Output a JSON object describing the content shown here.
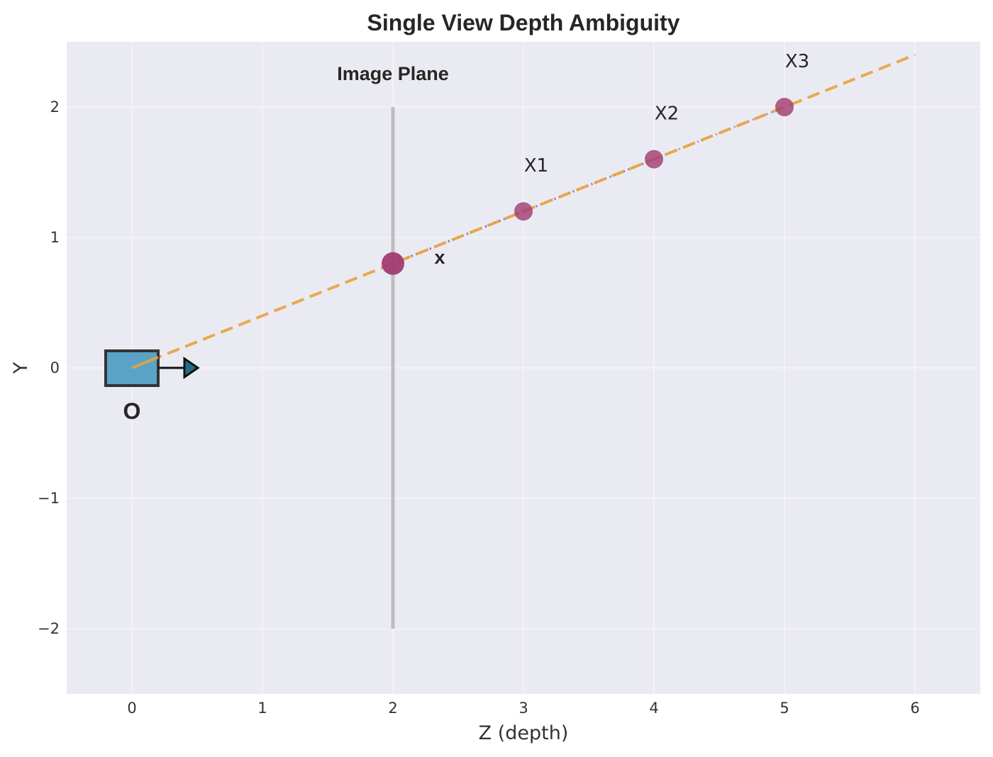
{
  "chart_data": {
    "type": "scatter",
    "title": "Single View Depth Ambiguity",
    "xlabel": "Z (depth)",
    "ylabel": "Y",
    "xlim": [
      -0.5,
      6.5
    ],
    "ylim": [
      -2.5,
      2.5
    ],
    "xticks": [
      0,
      1,
      2,
      3,
      4,
      5,
      6
    ],
    "yticks": [
      -2,
      -1,
      0,
      1,
      2
    ],
    "ytick_labels": [
      "−2",
      "−1",
      "0",
      "1",
      "2"
    ],
    "grid": true,
    "colors": {
      "background": "#eaeaf2",
      "grid": "#f4f4f8",
      "ray": "#e8a33d",
      "point": "#a23b72",
      "camera": "#5ba3c6",
      "plane": "#bdbdbd"
    },
    "image_plane": {
      "label": "Image Plane",
      "z": 2,
      "y_range": [
        -2,
        2
      ]
    },
    "camera": {
      "label": "O",
      "z": 0,
      "y": 0
    },
    "ray": {
      "from": [
        0,
        0
      ],
      "to": [
        6,
        2.4
      ]
    },
    "image_point": {
      "label": "x",
      "z": 2,
      "y": 0.8
    },
    "world_points": [
      {
        "label": "X1",
        "z": 3,
        "y": 1.2
      },
      {
        "label": "X2",
        "z": 4,
        "y": 1.6
      },
      {
        "label": "X3",
        "z": 5,
        "y": 2.0
      }
    ]
  }
}
